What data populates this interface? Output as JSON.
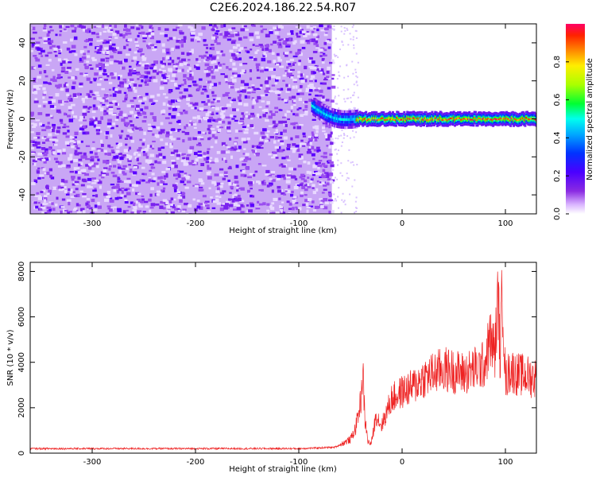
{
  "title": "C2E6.2024.186.22.54.R07",
  "colors": {
    "snr_line": "#ee2222",
    "spectrogram_background": "#7b2ff0",
    "colormap": [
      "#ffffff",
      "#d9b3ff",
      "#8a2be2",
      "#4a00ff",
      "#0033ff",
      "#00aaff",
      "#00ffee",
      "#00ff33",
      "#aaff00",
      "#ffee00",
      "#ff8800",
      "#ff2200",
      "#ff0066"
    ]
  },
  "chart_data": [
    {
      "type": "heatmap",
      "name": "spectrogram",
      "xlabel": "Height of straight line (km)",
      "ylabel": "Frequency (Hz)",
      "xlim": [
        -360,
        130
      ],
      "ylim": [
        -50,
        50
      ],
      "xticks": [
        -300,
        -200,
        -100,
        0,
        100
      ],
      "yticks": [
        -40,
        -20,
        0,
        20,
        40
      ],
      "colorbar": {
        "label": "Normalized spectral amplitude",
        "range": [
          0,
          1
        ],
        "ticks": [
          "0.0",
          "0.2",
          "0.4",
          "0.6",
          "0.8"
        ]
      },
      "regions": [
        {
          "desc": "noise",
          "x_range": [
            -360,
            -68
          ],
          "y_range": [
            -50,
            50
          ],
          "amplitude": 0.1
        },
        {
          "desc": "signal onset",
          "x_range": [
            -88,
            -45
          ],
          "center_hz": [
            7,
            0
          ],
          "amplitude": 0.45
        },
        {
          "desc": "signal track",
          "x_range": [
            -45,
            130
          ],
          "center_hz": 0,
          "amplitude": 0.95
        }
      ],
      "grid": false
    },
    {
      "type": "line",
      "name": "snr",
      "xlabel": "Height of straight line (km)",
      "ylabel": "SNR (10 * v/v)",
      "xlim": [
        -360,
        130
      ],
      "ylim": [
        0,
        8400
      ],
      "xticks": [
        -300,
        -200,
        -100,
        0,
        100
      ],
      "yticks": [
        0,
        2000,
        4000,
        6000,
        8000
      ],
      "profile": {
        "x": [
          -360,
          -300,
          -200,
          -100,
          -65,
          -50,
          -45,
          -40,
          -38,
          -36,
          -33,
          -30,
          -25,
          -20,
          -15,
          -10,
          0,
          10,
          20,
          30,
          40,
          50,
          60,
          70,
          80,
          85,
          90,
          93,
          95,
          97,
          100,
          105,
          110,
          120,
          130
        ],
        "y": [
          200,
          200,
          200,
          200,
          260,
          600,
          1100,
          2300,
          3600,
          1500,
          500,
          400,
          1700,
          1200,
          1800,
          2400,
          2700,
          2900,
          3300,
          3500,
          3700,
          3600,
          3500,
          3700,
          3900,
          5000,
          4500,
          7000,
          4000,
          7500,
          3200,
          3700,
          3500,
          3400,
          3300
        ]
      },
      "grid": false
    }
  ]
}
